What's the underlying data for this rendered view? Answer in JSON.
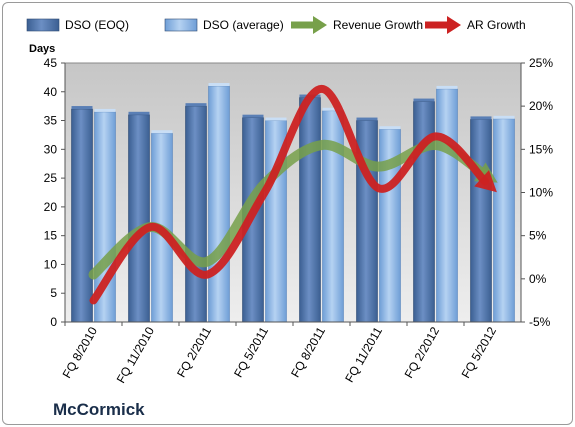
{
  "chart_data": {
    "type": "bar",
    "title": "",
    "company": "McCormick",
    "ylabel": "Days",
    "y2label": "",
    "categories": [
      "FQ 8/2010",
      "FQ 11/2010",
      "FQ 2/2011",
      "FQ 5/2011",
      "FQ 8/2011",
      "FQ 11/2011",
      "FQ 2/2012",
      "FQ 5/2012"
    ],
    "ylim": [
      0,
      45
    ],
    "yticks": [
      0,
      5,
      10,
      15,
      20,
      25,
      30,
      35,
      40,
      45
    ],
    "y2lim": [
      -5,
      25
    ],
    "y2ticks": [
      "-5%",
      "0%",
      "5%",
      "10%",
      "15%",
      "20%",
      "25%"
    ],
    "y2tick_values": [
      -5,
      0,
      5,
      10,
      15,
      20,
      25
    ],
    "grid": false,
    "legend_position": "top",
    "bar_series": [
      {
        "name": "DSO (EOQ)",
        "color": "#4a6fa5",
        "values": [
          37,
          36,
          37.5,
          35.5,
          39,
          35,
          38.3,
          35.2
        ]
      },
      {
        "name": "DSO (average)",
        "color": "#8eb4e3",
        "values": [
          36.5,
          32.8,
          41,
          35,
          36.7,
          33.5,
          40.5,
          35.3
        ]
      }
    ],
    "line_series": [
      {
        "name": "Revenue Growth",
        "color": "#77a04a",
        "axis": "right",
        "values": [
          0.5,
          6,
          2,
          11,
          15.5,
          13,
          15.5,
          11.5
        ]
      },
      {
        "name": "AR Growth",
        "color": "#cc2222",
        "axis": "right",
        "values": [
          -2.5,
          6,
          0.5,
          10,
          22,
          10.5,
          16.5,
          10.5
        ]
      }
    ]
  }
}
